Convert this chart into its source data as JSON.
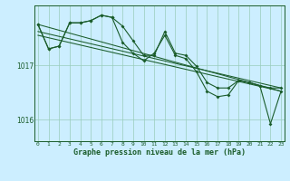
{
  "title": "Graphe pression niveau de la mer (hPa)",
  "bg_color": "#cceeff",
  "plot_bg_color": "#cceeff",
  "grid_color": "#99ccbb",
  "line_color": "#1a5c2a",
  "x_labels": [
    "0",
    "1",
    "2",
    "3",
    "4",
    "5",
    "6",
    "7",
    "8",
    "9",
    "10",
    "11",
    "12",
    "13",
    "14",
    "15",
    "16",
    "17",
    "18",
    "19",
    "20",
    "21",
    "22",
    "23"
  ],
  "yticks": [
    1016,
    1017
  ],
  "ylim": [
    1015.6,
    1018.1
  ],
  "xlim": [
    -0.3,
    23.3
  ],
  "series1": [
    1017.75,
    1017.3,
    1017.35,
    1017.78,
    1017.78,
    1017.82,
    1017.92,
    1017.88,
    1017.42,
    1017.22,
    1017.08,
    1017.22,
    1017.55,
    1017.18,
    1017.12,
    1016.88,
    1016.52,
    1016.42,
    1016.45,
    1016.72,
    1016.68,
    1016.62,
    1015.92,
    1016.52
  ],
  "series2": [
    1017.75,
    1017.3,
    1017.35,
    1017.78,
    1017.78,
    1017.82,
    1017.92,
    1017.88,
    1017.72,
    1017.45,
    1017.18,
    1017.18,
    1017.62,
    1017.22,
    1017.18,
    1016.98,
    1016.68,
    1016.58,
    1016.58,
    1016.72,
    1016.68,
    1016.62,
    1016.58,
    1016.58
  ],
  "trend1_x": [
    0,
    23
  ],
  "trend1_y": [
    1017.75,
    1016.52
  ],
  "trend2_x": [
    0,
    23
  ],
  "trend2_y": [
    1017.62,
    1016.58
  ],
  "trend3_x": [
    0,
    23
  ],
  "trend3_y": [
    1017.55,
    1016.52
  ]
}
